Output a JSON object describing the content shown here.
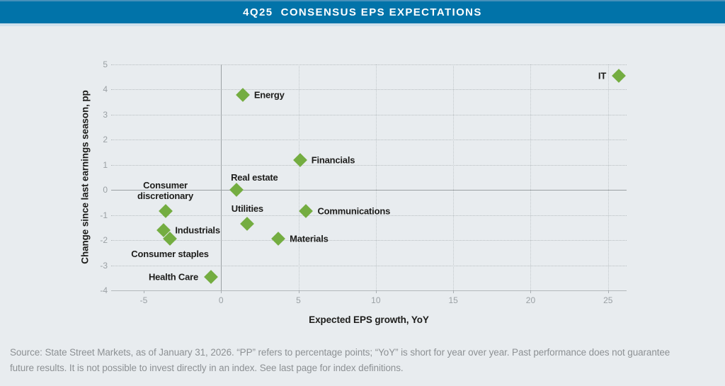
{
  "header": {
    "title": "4Q25  CONSENSUS EPS EXPECTATIONS",
    "bg_color": "#0173a9",
    "text_color": "#ffffff"
  },
  "chart_data": {
    "type": "scatter",
    "title": "4Q25 CONSENSUS EPS EXPECTATIONS",
    "xlabel": "Expected EPS growth, YoY",
    "ylabel": "Change since last earnings season, pp",
    "xlim": [
      -7.1,
      26.2
    ],
    "ylim": [
      -4,
      5
    ],
    "x_ticks": [
      -5,
      0,
      5,
      10,
      15,
      20,
      25
    ],
    "y_ticks": [
      5,
      4,
      3,
      2,
      1,
      0,
      -1,
      -2,
      -3,
      -4
    ],
    "x_gridlines": [
      0,
      5,
      10,
      15,
      20,
      25
    ],
    "grid": true,
    "legend": "none",
    "marker": {
      "shape": "diamond",
      "color": "#74ad41",
      "size": 20
    },
    "points": [
      {
        "label": "IT",
        "x": 25.7,
        "y": 4.55,
        "label_pos": "left"
      },
      {
        "label": "Energy",
        "x": 1.4,
        "y": 3.8,
        "label_pos": "right"
      },
      {
        "label": "Financials",
        "x": 5.1,
        "y": 1.2,
        "label_pos": "right"
      },
      {
        "label": "Real estate",
        "x": 1.0,
        "y": 0.0,
        "label_pos": "above-right"
      },
      {
        "label": "Consumer\ndiscretionary",
        "x": -3.6,
        "y": -0.85,
        "label_pos": "above"
      },
      {
        "label": "Communications",
        "x": 5.5,
        "y": -0.85,
        "label_pos": "right"
      },
      {
        "label": "Utilities",
        "x": 1.7,
        "y": -1.35,
        "label_pos": "above"
      },
      {
        "label": "Industrials",
        "x": -3.7,
        "y": -1.6,
        "label_pos": "right"
      },
      {
        "label": "Consumer staples",
        "x": -3.3,
        "y": -1.95,
        "label_pos": "below"
      },
      {
        "label": "Materials",
        "x": 3.7,
        "y": -1.95,
        "label_pos": "right"
      },
      {
        "label": "Health Care",
        "x": -0.65,
        "y": -3.45,
        "label_pos": "left"
      }
    ]
  },
  "footer": {
    "lines": [
      "Source: State Street Markets, as of January 31, 2026. “PP” refers to percentage points; “YoY” is short for year over year. Past performance does not guarantee",
      "future results. It is not possible to invest directly in an index. See last page for index definitions."
    ]
  }
}
